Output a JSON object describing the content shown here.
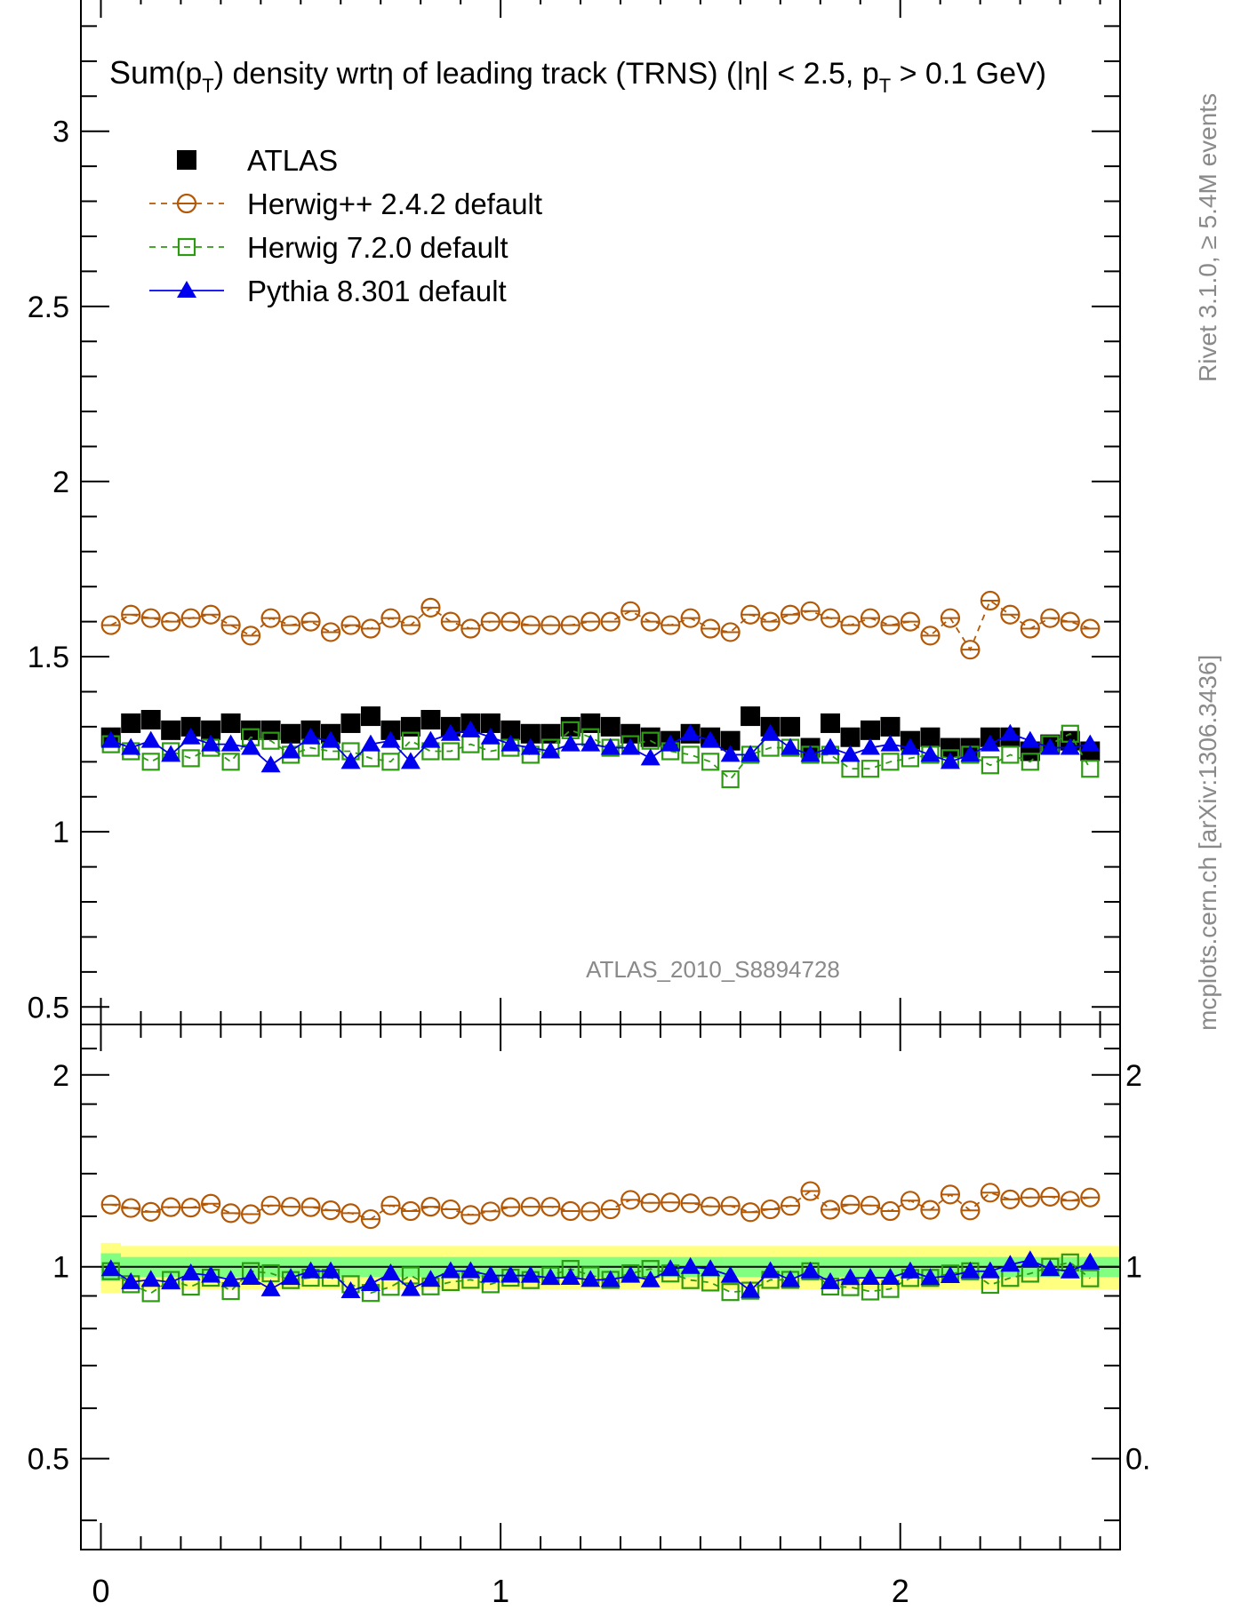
{
  "chart_data": [
    {
      "type": "scatter",
      "title": "Sum(p_T) density wrtη of leading track (TRNS) (|η| < 2.5, p_T > 0.1 GeV)",
      "title_main": "Sum",
      "title_p": "p",
      "title_sub": "T",
      "title_mid": ") density wrtη of leading track (TRNS) (|η| < 2.5, p",
      "title_end": " > 0.1 GeV)",
      "xlim": [
        -0.05,
        2.55
      ],
      "ylim": [
        0.45,
        3.4
      ],
      "yticks": [
        0.5,
        1,
        1.5,
        2,
        2.5,
        3
      ],
      "ytick_labels": [
        "0.5",
        "1",
        "1.5",
        "2",
        "2.5",
        "3"
      ],
      "yminor_step": 0.1,
      "legend_position": "top-left",
      "watermark": "ATLAS_2010_S8894728",
      "series": [
        {
          "name": "ATLAS",
          "color": "#000000",
          "marker": "filled-square",
          "values": [
            1.27,
            1.31,
            1.32,
            1.29,
            1.3,
            1.29,
            1.31,
            1.29,
            1.29,
            1.28,
            1.29,
            1.28,
            1.31,
            1.33,
            1.29,
            1.3,
            1.32,
            1.3,
            1.31,
            1.31,
            1.29,
            1.28,
            1.28,
            1.3,
            1.31,
            1.3,
            1.28,
            1.27,
            1.26,
            1.28,
            1.27,
            1.26,
            1.33,
            1.3,
            1.3,
            1.24,
            1.31,
            1.27,
            1.29,
            1.3,
            1.26,
            1.27,
            1.24,
            1.24,
            1.27,
            1.27,
            1.23,
            1.25,
            1.26,
            1.23
          ]
        },
        {
          "name": "Herwig++ 2.4.2 default",
          "color": "#b35806",
          "marker": "open-circle",
          "line": "dashed",
          "values": [
            1.59,
            1.62,
            1.61,
            1.6,
            1.61,
            1.62,
            1.59,
            1.56,
            1.61,
            1.59,
            1.6,
            1.57,
            1.59,
            1.58,
            1.61,
            1.59,
            1.64,
            1.6,
            1.58,
            1.6,
            1.6,
            1.59,
            1.59,
            1.59,
            1.6,
            1.6,
            1.63,
            1.6,
            1.59,
            1.61,
            1.58,
            1.57,
            1.62,
            1.6,
            1.62,
            1.63,
            1.61,
            1.59,
            1.61,
            1.59,
            1.6,
            1.56,
            1.61,
            1.52,
            1.66,
            1.62,
            1.58,
            1.61,
            1.6,
            1.58
          ]
        },
        {
          "name": "Herwig 7.2.0 default",
          "color": "#2e9a14",
          "marker": "open-square",
          "line": "dashed",
          "values": [
            1.25,
            1.23,
            1.2,
            1.23,
            1.21,
            1.24,
            1.2,
            1.27,
            1.26,
            1.22,
            1.24,
            1.23,
            1.23,
            1.21,
            1.2,
            1.26,
            1.23,
            1.23,
            1.25,
            1.23,
            1.24,
            1.22,
            1.24,
            1.29,
            1.27,
            1.24,
            1.25,
            1.26,
            1.23,
            1.22,
            1.2,
            1.15,
            1.22,
            1.24,
            1.24,
            1.22,
            1.22,
            1.18,
            1.18,
            1.2,
            1.21,
            1.22,
            1.21,
            1.22,
            1.19,
            1.22,
            1.2,
            1.25,
            1.28,
            1.18
          ]
        },
        {
          "name": "Pythia 8.301 default",
          "color": "#0000ee",
          "marker": "filled-triangle",
          "line": "solid",
          "values": [
            1.26,
            1.24,
            1.26,
            1.22,
            1.27,
            1.25,
            1.25,
            1.24,
            1.19,
            1.23,
            1.27,
            1.26,
            1.2,
            1.25,
            1.26,
            1.2,
            1.26,
            1.28,
            1.29,
            1.27,
            1.25,
            1.24,
            1.23,
            1.25,
            1.25,
            1.24,
            1.24,
            1.21,
            1.25,
            1.28,
            1.26,
            1.22,
            1.22,
            1.28,
            1.24,
            1.22,
            1.24,
            1.22,
            1.24,
            1.25,
            1.24,
            1.22,
            1.2,
            1.22,
            1.25,
            1.28,
            1.26,
            1.24,
            1.24,
            1.25
          ]
        }
      ]
    },
    {
      "type": "scatter",
      "xlim": [
        -0.05,
        2.55
      ],
      "ylim": [
        0.36,
        2.4
      ],
      "ylog": true,
      "yticks": [
        0.5,
        1,
        2
      ],
      "ytick_labels": [
        "0.5",
        "1",
        "2"
      ],
      "right_tick_labels": [
        "0.",
        "1",
        "2"
      ],
      "xticks": [
        0,
        1,
        2
      ],
      "xtick_labels": [
        "0",
        "1",
        "2"
      ],
      "band_colors": {
        "inner": "#80ff80",
        "outer": "#ffff80"
      },
      "band_inner": [
        0.05,
        0.036
      ],
      "band_outer": [
        0.09,
        0.078
      ]
    }
  ],
  "side_text": "mcplots.cern.ch [arXiv:1306.3436]",
  "rivet_text": "Rivet 3.1.0, ≥ 5.4M events"
}
